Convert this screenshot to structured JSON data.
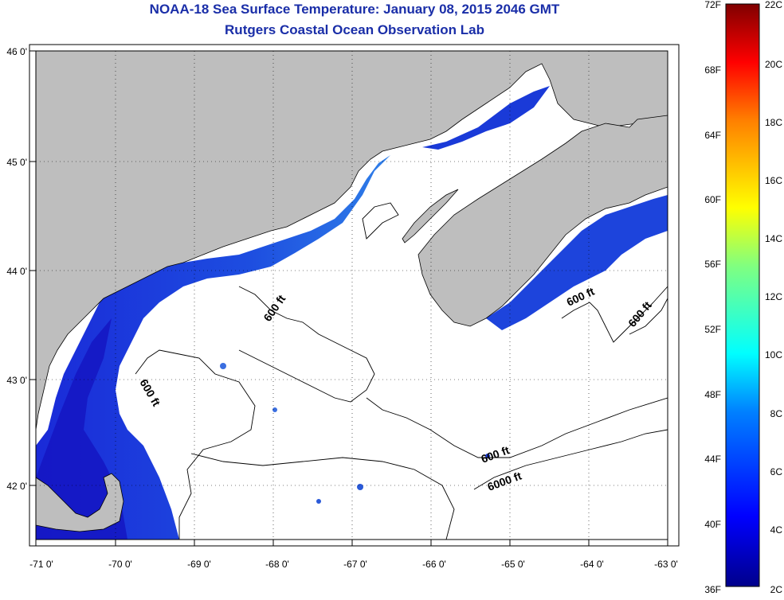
{
  "title": "NOAA-18 Sea Surface Temperature:  January 08, 2015 2046 GMT",
  "subtitle": "Rutgers Coastal Ocean Observation Lab",
  "map": {
    "lon_ticks": [
      "-71 0'",
      "-70 0'",
      "-69 0'",
      "-68 0'",
      "-67 0'",
      "-66 0'",
      "-65 0'",
      "-64 0'",
      "-63 0'"
    ],
    "lat_ticks": [
      "46 0'",
      "45 0'",
      "44 0'",
      "43 0'",
      "42 0'"
    ],
    "lon_range": [
      -71.0,
      -63.0
    ],
    "lat_range": [
      41.5,
      46.0
    ],
    "grid": "dotted",
    "colors": {
      "land": "#bebebe",
      "ocean_no_data": "#ffffff",
      "contour": "#000000"
    },
    "contour_labels": [
      "600 ft",
      "600 ft",
      "600 ft",
      "600 ft",
      "600 ft",
      "6000 ft"
    ]
  },
  "colorbar": {
    "labels_f": [
      "72F",
      "68F",
      "64F",
      "60F",
      "56F",
      "52F",
      "48F",
      "44F",
      "40F",
      "36F"
    ],
    "labels_c": [
      "22C",
      "20C",
      "18C",
      "16C",
      "14C",
      "12C",
      "10C",
      "8C",
      "6C",
      "4C",
      "2C"
    ],
    "range_f": [
      36,
      72
    ],
    "range_c": [
      2,
      22
    ]
  }
}
